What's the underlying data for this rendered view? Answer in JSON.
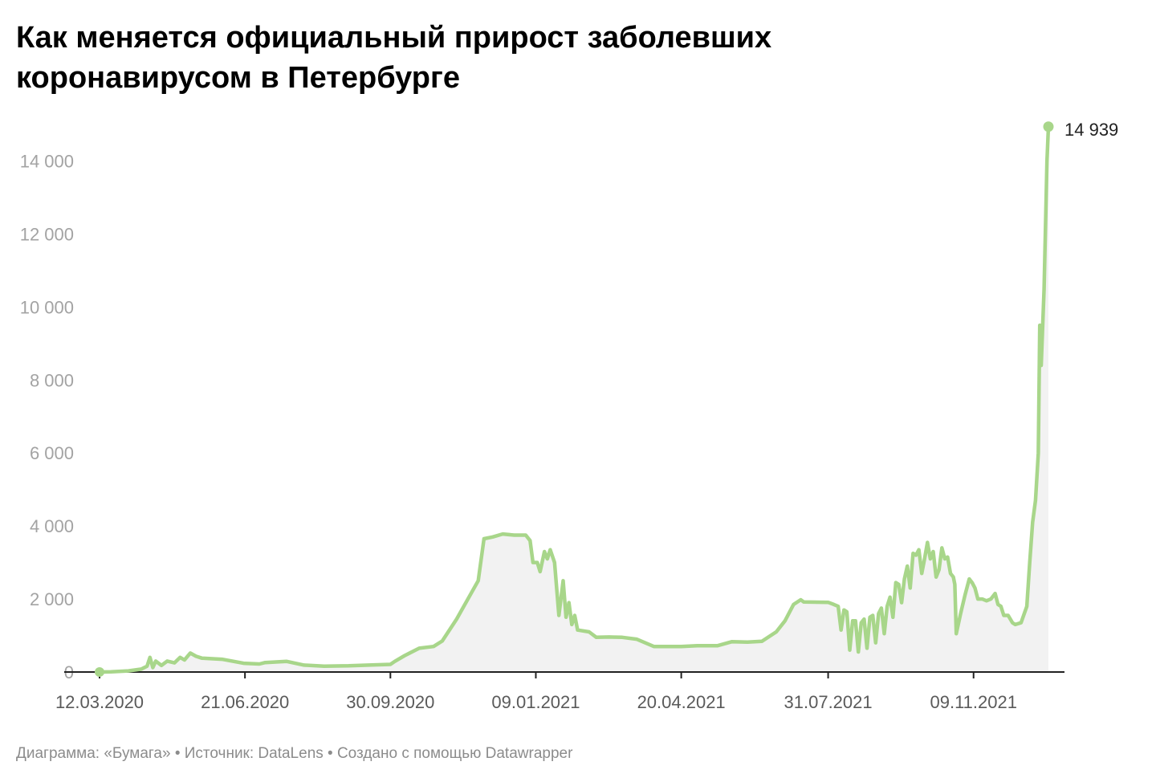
{
  "chart_data": {
    "type": "area",
    "title": "Как меняется официальный прирост заболевших коронавирусом в Петербурге",
    "xlabel": "",
    "ylabel": "",
    "ylim": [
      0,
      15000
    ],
    "yticks": [
      0,
      2000,
      4000,
      6000,
      8000,
      10000,
      12000,
      14000
    ],
    "ytick_labels": [
      "0",
      "2 000",
      "4 000",
      "6 000",
      "8 000",
      "10 000",
      "12 000",
      "14 000"
    ],
    "xlim": [
      "2020-03-12",
      "2022-01-26"
    ],
    "xticks": [
      "2020-03-12",
      "2020-06-21",
      "2020-09-30",
      "2021-01-09",
      "2021-04-20",
      "2021-07-31",
      "2021-11-09"
    ],
    "xtick_labels": [
      "12.03.2020",
      "21.06.2020",
      "30.09.2020",
      "09.01.2021",
      "20.04.2021",
      "31.07.2021",
      "09.11.2021"
    ],
    "grid": false,
    "line_color": "#a8d68a",
    "fill_color": "#f2f2f2",
    "last_value_label": "14 939",
    "series": [
      {
        "points": [
          [
            "2020-03-12",
            0
          ],
          [
            "2020-03-20",
            5
          ],
          [
            "2020-04-01",
            30
          ],
          [
            "2020-04-10",
            80
          ],
          [
            "2020-04-14",
            160
          ],
          [
            "2020-04-16",
            400
          ],
          [
            "2020-04-18",
            120
          ],
          [
            "2020-04-20",
            300
          ],
          [
            "2020-04-24",
            180
          ],
          [
            "2020-04-28",
            300
          ],
          [
            "2020-05-03",
            250
          ],
          [
            "2020-05-07",
            400
          ],
          [
            "2020-05-10",
            330
          ],
          [
            "2020-05-14",
            520
          ],
          [
            "2020-05-18",
            430
          ],
          [
            "2020-05-22",
            380
          ],
          [
            "2020-06-05",
            350
          ],
          [
            "2020-06-20",
            240
          ],
          [
            "2020-07-01",
            220
          ],
          [
            "2020-07-05",
            260
          ],
          [
            "2020-07-20",
            290
          ],
          [
            "2020-08-01",
            190
          ],
          [
            "2020-08-15",
            160
          ],
          [
            "2020-09-01",
            170
          ],
          [
            "2020-09-15",
            190
          ],
          [
            "2020-09-30",
            210
          ],
          [
            "2020-10-03",
            290
          ],
          [
            "2020-10-10",
            450
          ],
          [
            "2020-10-20",
            650
          ],
          [
            "2020-10-30",
            700
          ],
          [
            "2020-11-05",
            850
          ],
          [
            "2020-11-15",
            1450
          ],
          [
            "2020-11-30",
            2500
          ],
          [
            "2020-12-04",
            3650
          ],
          [
            "2020-12-10",
            3700
          ],
          [
            "2020-12-17",
            3780
          ],
          [
            "2020-12-25",
            3750
          ],
          [
            "2021-01-02",
            3750
          ],
          [
            "2021-01-05",
            3600
          ],
          [
            "2021-01-07",
            3000
          ],
          [
            "2021-01-10",
            3000
          ],
          [
            "2021-01-12",
            2750
          ],
          [
            "2021-01-15",
            3300
          ],
          [
            "2021-01-17",
            3100
          ],
          [
            "2021-01-19",
            3350
          ],
          [
            "2021-01-22",
            3000
          ],
          [
            "2021-01-25",
            1550
          ],
          [
            "2021-01-28",
            2500
          ],
          [
            "2021-01-30",
            1500
          ],
          [
            "2021-02-01",
            1900
          ],
          [
            "2021-02-03",
            1300
          ],
          [
            "2021-02-05",
            1550
          ],
          [
            "2021-02-07",
            1150
          ],
          [
            "2021-02-15",
            1100
          ],
          [
            "2021-02-20",
            950
          ],
          [
            "2021-03-01",
            960
          ],
          [
            "2021-03-10",
            950
          ],
          [
            "2021-03-20",
            900
          ],
          [
            "2021-04-01",
            700
          ],
          [
            "2021-04-20",
            700
          ],
          [
            "2021-05-01",
            720
          ],
          [
            "2021-05-15",
            720
          ],
          [
            "2021-05-25",
            830
          ],
          [
            "2021-06-05",
            820
          ],
          [
            "2021-06-15",
            840
          ],
          [
            "2021-06-25",
            1100
          ],
          [
            "2021-07-01",
            1400
          ],
          [
            "2021-07-07",
            1850
          ],
          [
            "2021-07-12",
            1980
          ],
          [
            "2021-07-14",
            1920
          ],
          [
            "2021-07-31",
            1910
          ],
          [
            "2021-08-04",
            1850
          ],
          [
            "2021-08-07",
            1800
          ],
          [
            "2021-08-09",
            1150
          ],
          [
            "2021-08-11",
            1700
          ],
          [
            "2021-08-13",
            1650
          ],
          [
            "2021-08-15",
            600
          ],
          [
            "2021-08-17",
            1400
          ],
          [
            "2021-08-19",
            1400
          ],
          [
            "2021-08-21",
            550
          ],
          [
            "2021-08-23",
            1350
          ],
          [
            "2021-08-25",
            1450
          ],
          [
            "2021-08-27",
            650
          ],
          [
            "2021-08-29",
            1500
          ],
          [
            "2021-08-31",
            1550
          ],
          [
            "2021-09-02",
            800
          ],
          [
            "2021-09-04",
            1600
          ],
          [
            "2021-09-06",
            1750
          ],
          [
            "2021-09-08",
            1050
          ],
          [
            "2021-09-10",
            1800
          ],
          [
            "2021-09-12",
            2050
          ],
          [
            "2021-09-14",
            1500
          ],
          [
            "2021-09-16",
            2450
          ],
          [
            "2021-09-18",
            2400
          ],
          [
            "2021-09-20",
            1900
          ],
          [
            "2021-09-22",
            2550
          ],
          [
            "2021-09-24",
            2900
          ],
          [
            "2021-09-26",
            2300
          ],
          [
            "2021-09-28",
            3250
          ],
          [
            "2021-09-30",
            3200
          ],
          [
            "2021-10-02",
            3350
          ],
          [
            "2021-10-04",
            2700
          ],
          [
            "2021-10-06",
            3100
          ],
          [
            "2021-10-08",
            3550
          ],
          [
            "2021-10-10",
            3100
          ],
          [
            "2021-10-12",
            3300
          ],
          [
            "2021-10-14",
            2600
          ],
          [
            "2021-10-16",
            2800
          ],
          [
            "2021-10-18",
            3400
          ],
          [
            "2021-10-20",
            3100
          ],
          [
            "2021-10-22",
            3150
          ],
          [
            "2021-10-24",
            2700
          ],
          [
            "2021-10-26",
            2600
          ],
          [
            "2021-10-27",
            2400
          ],
          [
            "2021-10-28",
            1050
          ],
          [
            "2021-10-31",
            1600
          ],
          [
            "2021-11-03",
            2100
          ],
          [
            "2021-11-06",
            2550
          ],
          [
            "2021-11-08",
            2450
          ],
          [
            "2021-11-10",
            2300
          ],
          [
            "2021-11-12",
            2000
          ],
          [
            "2021-11-15",
            2000
          ],
          [
            "2021-11-18",
            1950
          ],
          [
            "2021-11-21",
            2000
          ],
          [
            "2021-11-24",
            2150
          ],
          [
            "2021-11-26",
            1850
          ],
          [
            "2021-11-28",
            1800
          ],
          [
            "2021-11-30",
            1550
          ],
          [
            "2021-12-03",
            1550
          ],
          [
            "2021-12-06",
            1350
          ],
          [
            "2021-12-08",
            1300
          ],
          [
            "2021-12-12",
            1350
          ],
          [
            "2021-12-16",
            1800
          ],
          [
            "2021-12-18",
            3000
          ],
          [
            "2021-12-20",
            4100
          ],
          [
            "2021-12-22",
            4700
          ],
          [
            "2021-12-24",
            6000
          ],
          [
            "2021-12-25",
            9500
          ],
          [
            "2021-12-26",
            8400
          ],
          [
            "2021-12-28",
            10500
          ],
          [
            "2021-12-30",
            14000
          ],
          [
            "2021-12-31",
            14939
          ]
        ]
      }
    ]
  },
  "footer": {
    "text": "Диаграмма: «Бумага» • Источник: DataLens • Создано с помощью Datawrapper"
  }
}
